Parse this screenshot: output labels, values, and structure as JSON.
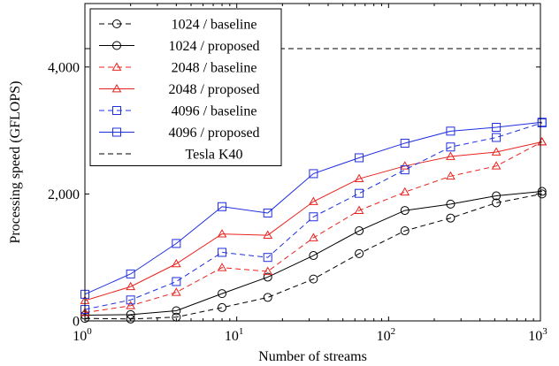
{
  "chart_data": {
    "type": "line",
    "title": "",
    "xlabel": "Number of streams",
    "ylabel": "Processing speed (GFLOPS)",
    "xscale": "log",
    "xlim": [
      1,
      1000
    ],
    "ylim": [
      0,
      5000
    ],
    "x_ticks": [
      1,
      10,
      100,
      1000
    ],
    "x_tick_labels": [
      {
        "base": "10",
        "exp": "0"
      },
      {
        "base": "10",
        "exp": "1"
      },
      {
        "base": "10",
        "exp": "2"
      },
      {
        "base": "10",
        "exp": "3"
      }
    ],
    "y_ticks": [
      0,
      2000,
      4000
    ],
    "y_tick_labels": [
      "0",
      "2,000",
      "4,000"
    ],
    "grid": false,
    "legend_position": "top-left",
    "x": [
      1,
      2,
      4,
      8,
      16,
      32,
      64,
      128,
      256,
      512,
      1024
    ],
    "series": [
      {
        "name": "1024 / baseline",
        "color": "#000000",
        "dash": "dashed",
        "marker": "circle",
        "values": [
          40,
          30,
          60,
          210,
          370,
          660,
          1060,
          1420,
          1620,
          1860,
          2000
        ]
      },
      {
        "name": "1024 / proposed",
        "color": "#000000",
        "dash": "solid",
        "marker": "circle",
        "values": [
          90,
          100,
          160,
          430,
          690,
          1030,
          1420,
          1740,
          1840,
          1970,
          2040
        ]
      },
      {
        "name": "2048 / baseline",
        "color": "#e8231f",
        "dash": "dashed",
        "marker": "triangle",
        "values": [
          130,
          240,
          450,
          840,
          780,
          1310,
          1740,
          2030,
          2280,
          2440,
          2820
        ]
      },
      {
        "name": "2048 / proposed",
        "color": "#e8231f",
        "dash": "solid",
        "marker": "triangle",
        "values": [
          320,
          540,
          900,
          1370,
          1350,
          1880,
          2240,
          2440,
          2590,
          2660,
          2820
        ]
      },
      {
        "name": "4096 / baseline",
        "color": "#1f2fe0",
        "dash": "dashed",
        "marker": "square",
        "values": [
          180,
          330,
          620,
          1080,
          1000,
          1640,
          2010,
          2380,
          2740,
          2890,
          3120
        ]
      },
      {
        "name": "4096 / proposed",
        "color": "#1f2fe0",
        "dash": "solid",
        "marker": "square",
        "values": [
          420,
          740,
          1220,
          1800,
          1700,
          2320,
          2570,
          2800,
          2990,
          3050,
          3130
        ]
      },
      {
        "name": "Tesla K40",
        "color": "#000000",
        "dash": "dashed",
        "marker": "none",
        "x": [
          1,
          1000
        ],
        "values": [
          4290,
          4290
        ]
      }
    ]
  }
}
